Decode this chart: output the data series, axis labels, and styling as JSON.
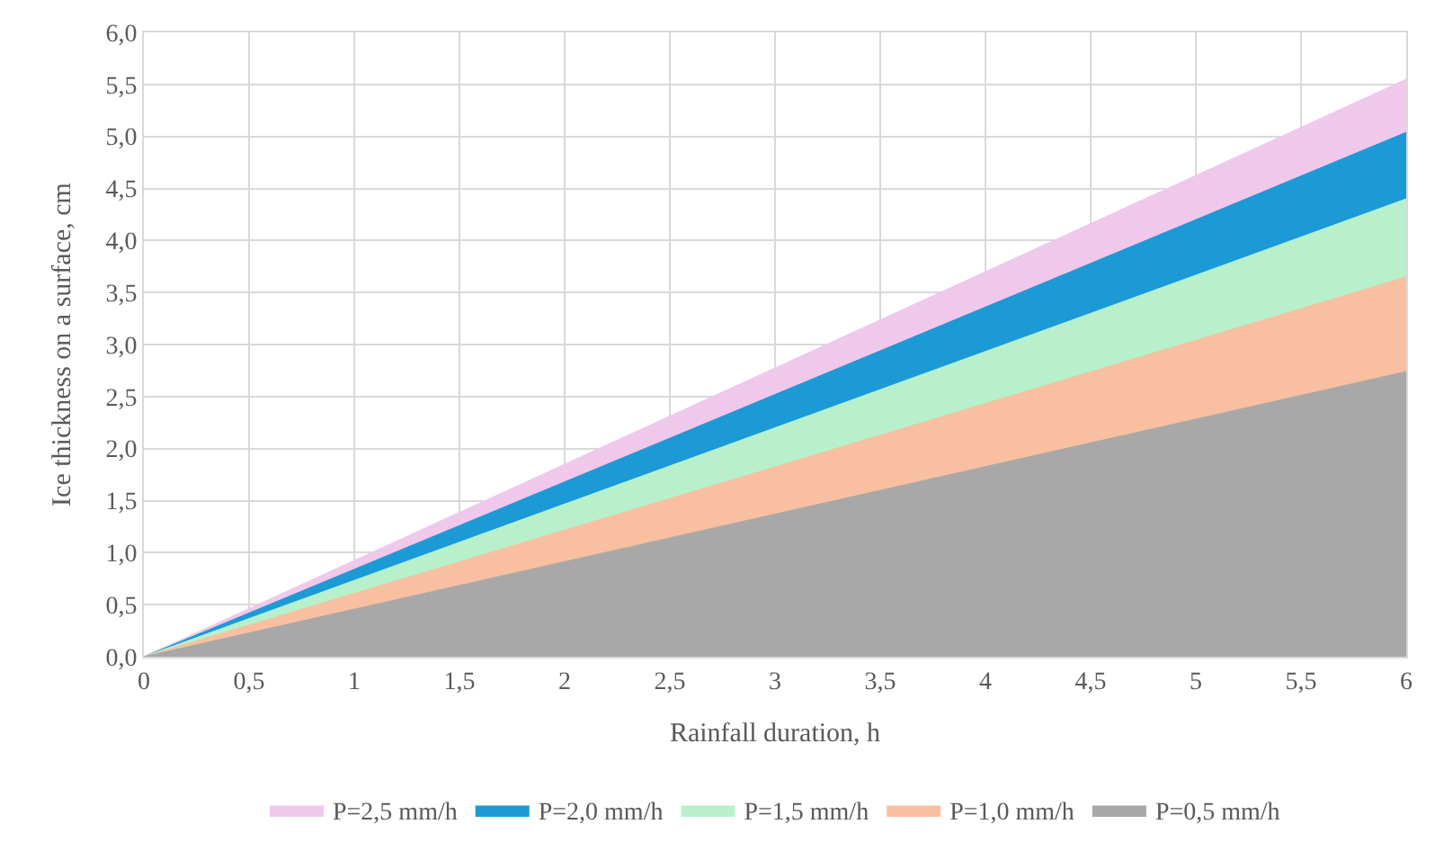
{
  "chart_data": {
    "type": "area",
    "xlabel": "Rainfall duration, h",
    "ylabel": "Ice thickness on a surface, cm",
    "x": [
      0,
      6
    ],
    "series": [
      {
        "name": "P=2,5 mm/h",
        "color": "#f0c8ec",
        "values": [
          0,
          5.55
        ]
      },
      {
        "name": "P=2,0 mm/h",
        "color": "#1b9ad6",
        "values": [
          0,
          5.04
        ]
      },
      {
        "name": "P=1,5 mm/h",
        "color": "#b8f0cc",
        "values": [
          0,
          4.4
        ]
      },
      {
        "name": "P=1,0 mm/h",
        "color": "#f8c0a0",
        "values": [
          0,
          3.65
        ]
      },
      {
        "name": "P=0,5 mm/h",
        "color": "#a8a8a8",
        "values": [
          0,
          2.74
        ]
      }
    ],
    "xlim": [
      0,
      6
    ],
    "ylim": [
      0,
      6
    ],
    "xticks": [
      0,
      {
        "value": 0.5,
        "label": "0,5"
      },
      1,
      {
        "value": 1.5,
        "label": "1,5"
      },
      2,
      {
        "value": 2.5,
        "label": "2,5"
      },
      3,
      {
        "value": 3.5,
        "label": "3,5"
      },
      4,
      {
        "value": 4.5,
        "label": "4,5"
      },
      5,
      {
        "value": 5.5,
        "label": "5,5"
      },
      6
    ],
    "yticks": [
      {
        "value": 0,
        "label": "0,0"
      },
      {
        "value": 0.5,
        "label": "0,5"
      },
      {
        "value": 1,
        "label": "1,0"
      },
      {
        "value": 1.5,
        "label": "1,5"
      },
      {
        "value": 2,
        "label": "2,0"
      },
      {
        "value": 2.5,
        "label": "2,5"
      },
      {
        "value": 3,
        "label": "3,0"
      },
      {
        "value": 3.5,
        "label": "3,5"
      },
      {
        "value": 4,
        "label": "4,0"
      },
      {
        "value": 4.5,
        "label": "4,5"
      },
      {
        "value": 5,
        "label": "5,0"
      },
      {
        "value": 5.5,
        "label": "5,5"
      },
      {
        "value": 6,
        "label": "6,0"
      }
    ],
    "grid": true,
    "legend": "bottom"
  }
}
